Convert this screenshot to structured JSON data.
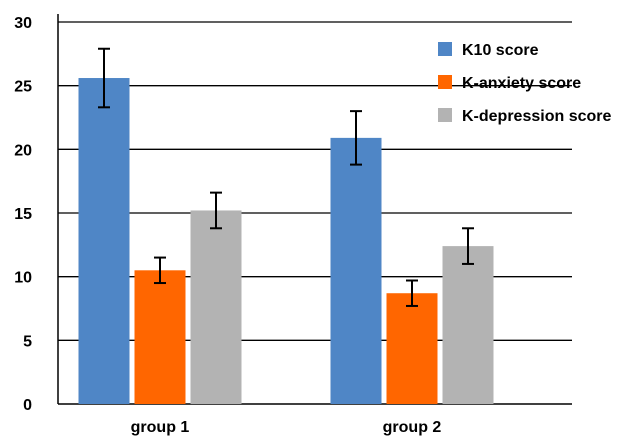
{
  "chart_data": {
    "type": "bar",
    "categories": [
      "group 1",
      "group 2"
    ],
    "series": [
      {
        "name": "K10 score",
        "color": "#4f86c6",
        "values": [
          25.6,
          20.9
        ],
        "error": [
          2.3,
          2.1
        ]
      },
      {
        "name": "K-anxiety score",
        "color": "#ff6600",
        "values": [
          10.5,
          8.7
        ],
        "error": [
          1.0,
          1.0
        ]
      },
      {
        "name": "K-depression score",
        "color": "#b3b3b3",
        "values": [
          15.2,
          12.4
        ],
        "error": [
          1.4,
          1.4
        ]
      }
    ],
    "ylim": [
      0,
      30
    ],
    "yticks": [
      0,
      5,
      10,
      15,
      20,
      25,
      30
    ],
    "grid": true,
    "legend_position": "top-right",
    "title": "",
    "xlabel": "",
    "ylabel": ""
  }
}
